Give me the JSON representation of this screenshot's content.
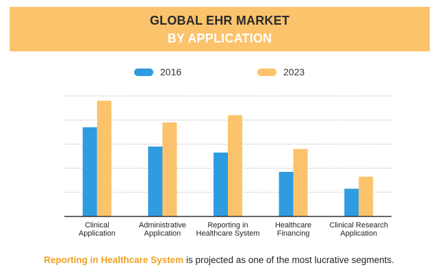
{
  "header": {
    "title_line1": "GLOBAL EHR MARKET",
    "title_line2": "BY APPLICATION"
  },
  "colors": {
    "banner": "#fbc36c",
    "series_2016": "#2f9be0",
    "series_2023": "#fbc36c",
    "footer_highlight": "#f0a020"
  },
  "chart_data": {
    "type": "bar",
    "categories": [
      [
        "Clinical",
        "Application"
      ],
      [
        "Administrative",
        "Application"
      ],
      [
        "Reporting in",
        "Healthcare System"
      ],
      [
        "Healthcare",
        "Financing"
      ],
      [
        "Clinical Research",
        "Application"
      ]
    ],
    "series": [
      {
        "name": "2016",
        "color": "#2f9be0",
        "values": [
          3.7,
          2.9,
          2.65,
          1.85,
          1.15
        ]
      },
      {
        "name": "2023",
        "color": "#fbc36c",
        "values": [
          4.8,
          3.9,
          4.2,
          2.8,
          1.65
        ]
      }
    ],
    "ylim": [
      0,
      5
    ],
    "grid": true,
    "legend_position": "top-center"
  },
  "footer": {
    "highlight": "Reporting in Healthcare System",
    "rest": " is projected as one of the most lucrative segments."
  }
}
